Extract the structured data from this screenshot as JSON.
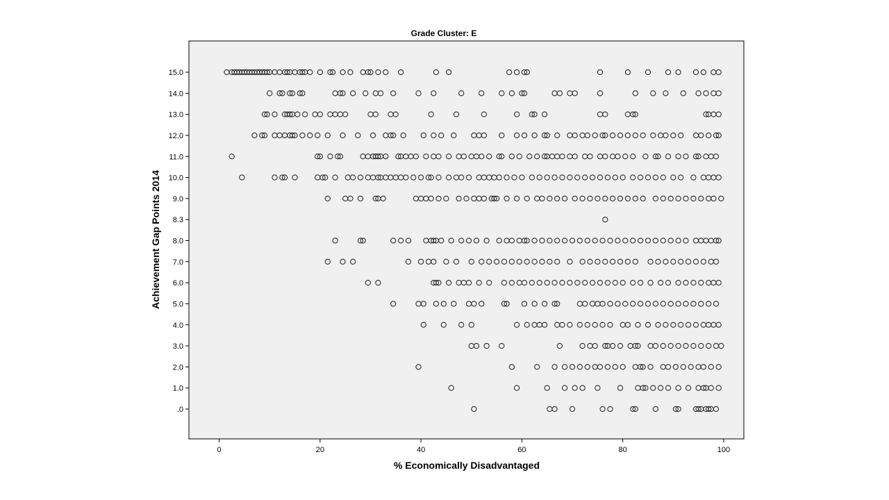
{
  "chart_data": {
    "type": "scatter",
    "title": "Grade Cluster: E",
    "xlabel": "% Economically Disadvantaged",
    "ylabel": "Achievement Gap Points 2014",
    "xlim": [
      -6,
      104
    ],
    "x_ticks": [
      0,
      20,
      40,
      60,
      80,
      100
    ],
    "x_tick_labels": [
      "0",
      "20",
      "40",
      "60",
      "80",
      "100"
    ],
    "y_categories": [
      ".0",
      "1.0",
      "2.0",
      "3.0",
      "4.0",
      "5.0",
      "6.0",
      "7.0",
      "8.0",
      "8.3",
      "9.0",
      "10.0",
      "11.0",
      "12.0",
      "13.0",
      "14.0",
      "15.0"
    ],
    "grid": false,
    "legend": "none",
    "colors": {
      "plot_background": "#f0f0f0",
      "marker": "#2b2b2b"
    },
    "points": {
      "15.0": [
        1.5,
        2.5,
        3,
        3.5,
        4,
        4.5,
        5,
        5.5,
        6,
        6.5,
        7,
        7.5,
        8,
        8.5,
        9,
        9.5,
        10,
        11,
        12,
        13,
        13.5,
        14,
        15,
        16,
        16.5,
        17,
        18,
        20,
        22,
        22.5,
        24.5,
        26,
        28.5,
        29.5,
        30,
        31.5,
        33,
        36,
        43,
        45.5,
        57.5,
        59,
        60.5,
        61,
        75.5,
        81,
        85,
        89,
        91,
        94.5,
        96,
        98,
        99
      ],
      "14.0": [
        10,
        12,
        12.5,
        14,
        14.5,
        16,
        16.5,
        23,
        24,
        24.5,
        26.5,
        29,
        31,
        32,
        34.5,
        39.5,
        42.5,
        48,
        52,
        56,
        58,
        60,
        60.5,
        66.5,
        67.5,
        69.5,
        70.5,
        75.5,
        82.5,
        86,
        88.5,
        92,
        95,
        96.5,
        98,
        99
      ],
      "13.0": [
        9,
        9.5,
        11,
        13,
        13.5,
        14,
        14.5,
        15.5,
        17,
        19,
        20,
        22,
        23,
        24,
        25,
        30,
        31,
        34,
        35,
        42,
        47,
        52.5,
        59,
        62,
        62.5,
        64.5,
        75.5,
        76.5,
        81,
        82,
        82.5,
        96.5,
        97,
        98,
        99
      ],
      "12.0": [
        7,
        8.5,
        9,
        11,
        12,
        13,
        14,
        14.5,
        15,
        16.5,
        18,
        19.5,
        21.5,
        24.5,
        27.5,
        30.5,
        33,
        34,
        34.5,
        36.5,
        40.5,
        42.5,
        44,
        46.5,
        50.5,
        51.5,
        52.5,
        56,
        59,
        60.5,
        62.5,
        64.5,
        65,
        67,
        69.5,
        70.5,
        72,
        73,
        74.5,
        76,
        76.5,
        78,
        79.5,
        81,
        82.5,
        84,
        86,
        87.5,
        88.5,
        90,
        91.5,
        94.5,
        95.5,
        97,
        98.5,
        99
      ],
      "11.0": [
        2.5,
        19.5,
        20,
        22,
        23.5,
        24,
        28.5,
        29.5,
        30.5,
        31,
        31.5,
        32,
        33,
        35.5,
        36,
        37,
        38,
        39,
        41,
        42.5,
        43.5,
        45.5,
        47.5,
        48.5,
        50,
        51,
        52,
        53.5,
        55.5,
        56,
        58,
        59.5,
        61.5,
        63,
        64.5,
        65,
        66,
        67,
        68,
        69.5,
        70.5,
        72.5,
        73.5,
        75.5,
        76.5,
        78,
        79,
        80.5,
        82,
        84.5,
        86.5,
        87,
        89,
        91,
        92.5,
        94.5,
        95,
        96.5,
        97.5,
        98.5
      ],
      "10.0": [
        4.5,
        11,
        12.5,
        13,
        15,
        19.5,
        20.5,
        21,
        23,
        25.5,
        26.5,
        28,
        29.5,
        30.5,
        31.5,
        32,
        33,
        34,
        35,
        36,
        37,
        38.5,
        40,
        41.5,
        42,
        43.5,
        45.5,
        47,
        48,
        49.5,
        51.5,
        52.5,
        53.5,
        54.5,
        55.5,
        57,
        58.5,
        60,
        62,
        63.5,
        65,
        66.5,
        68,
        69.5,
        71,
        72.5,
        74,
        75.5,
        77,
        78.5,
        80,
        82,
        83.5,
        85,
        86.5,
        88,
        90,
        91.5,
        94,
        96,
        97,
        98,
        99
      ],
      "9.0": [
        21.5,
        25,
        26,
        28,
        31,
        31.5,
        32.5,
        39,
        40,
        41,
        42,
        43.5,
        45,
        47.5,
        49,
        50.5,
        51.5,
        52.5,
        54,
        54.5,
        55,
        57,
        59,
        61,
        63,
        64,
        65.5,
        67,
        68.5,
        70.5,
        72,
        73.5,
        75,
        76.5,
        78,
        79.5,
        81,
        82.5,
        84,
        86.5,
        88,
        89.5,
        91,
        92.5,
        94,
        95.5,
        97,
        98,
        99.5
      ],
      "8.3": [
        76.5
      ],
      "8.0": [
        23,
        28,
        28.5,
        34.5,
        36,
        37.5,
        41,
        42,
        42.5,
        43,
        44,
        46,
        48,
        49.5,
        51,
        53,
        55.5,
        57,
        58,
        59.5,
        60.5,
        61,
        62.5,
        64,
        65.5,
        67,
        68.5,
        70,
        71.5,
        73,
        74.5,
        76,
        77.5,
        79,
        80.5,
        82,
        83.5,
        85,
        86.5,
        88,
        89.5,
        91,
        92.5,
        94.5,
        95.5,
        96.5,
        97.5,
        98.5,
        99
      ],
      "7.0": [
        21.5,
        24.5,
        26.5,
        37.5,
        40,
        41.5,
        42.5,
        45,
        47,
        50,
        52,
        53.5,
        55,
        56.5,
        58,
        59.5,
        61,
        62.5,
        64,
        65.5,
        67,
        69.5,
        72,
        73.5,
        75,
        76.5,
        78,
        79.5,
        81,
        82.5,
        85.5,
        87,
        88.5,
        90,
        91.5,
        93,
        94.5,
        96,
        97.5,
        98.5
      ],
      "6.0": [
        29.5,
        31.5,
        42.5,
        43,
        43.5,
        45.5,
        47.5,
        48.5,
        49.5,
        51.5,
        53.5,
        56.5,
        58,
        59.5,
        60.5,
        62,
        63.5,
        65,
        66.5,
        68,
        69.5,
        71,
        72.5,
        74,
        75.5,
        77,
        78.5,
        80,
        82,
        83.5,
        85.5,
        87.5,
        89,
        91,
        92.5,
        94,
        95.5,
        97,
        98,
        99
      ],
      "5.0": [
        34.5,
        39.5,
        40.5,
        43,
        44.5,
        46.5,
        49.5,
        50.5,
        52,
        56.5,
        57,
        60.5,
        62.5,
        64.5,
        66.5,
        67,
        71.5,
        72.5,
        74,
        75,
        76,
        77.5,
        79,
        80.5,
        82,
        83.5,
        85,
        86.5,
        88,
        89.5,
        91,
        92.5,
        94,
        95.5,
        97,
        98.5
      ],
      "4.0": [
        40.5,
        44.5,
        48,
        50,
        59,
        61,
        62.5,
        63.5,
        64.5,
        67,
        68,
        69.5,
        71.5,
        73,
        74.5,
        76,
        77.5,
        80,
        81,
        83,
        85,
        87,
        88.5,
        90,
        91.5,
        93,
        94.5,
        96,
        97,
        98,
        99
      ],
      "3.0": [
        50,
        51,
        53,
        56,
        67.5,
        72,
        73.5,
        74.5,
        76.5,
        77,
        78,
        79.5,
        81.5,
        82.5,
        83,
        85.5,
        86.5,
        88,
        89.5,
        91,
        92.5,
        94,
        95.5,
        97,
        98.5,
        99.5
      ],
      "2.0": [
        39.5,
        58,
        63,
        66.5,
        68.5,
        70,
        71.5,
        73,
        74.5,
        75.5,
        77,
        78.5,
        80,
        82.5,
        83.5,
        84,
        85.5,
        88,
        89,
        90.5,
        92,
        93.5,
        95,
        96,
        97.5,
        99
      ],
      "1.0": [
        46,
        59,
        65,
        68.5,
        70.5,
        72,
        75,
        79.5,
        83,
        84,
        84.5,
        86,
        87.5,
        89,
        91,
        93,
        95,
        96,
        96.5,
        97.5,
        99
      ],
      ".0": [
        50.5,
        65.5,
        66.5,
        70,
        76,
        77.5,
        82,
        82.5,
        86.5,
        90.5,
        91,
        94.5,
        95,
        95.5,
        96.5,
        97,
        97.5,
        98.5
      ]
    }
  }
}
